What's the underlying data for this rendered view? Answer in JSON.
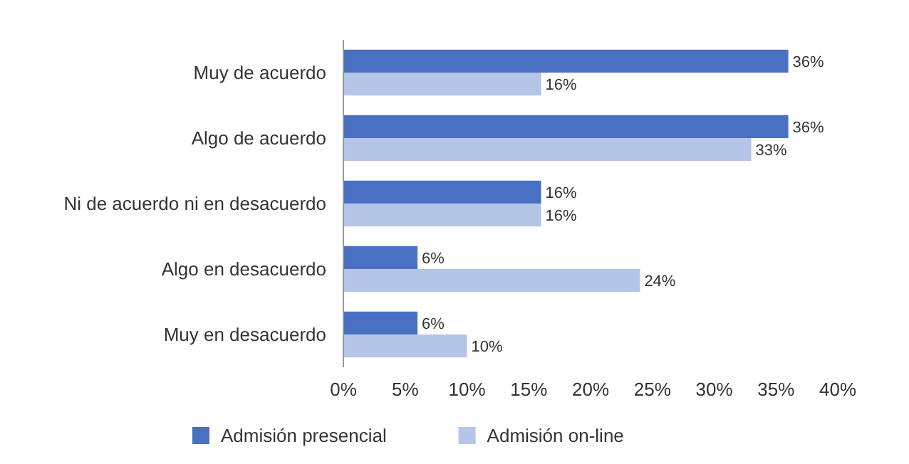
{
  "chart_data": {
    "type": "bar",
    "orientation": "horizontal",
    "categories": [
      "Muy de acuerdo",
      "Algo de acuerdo",
      "Ni de acuerdo ni en desacuerdo",
      "Algo en desacuerdo",
      "Muy en desacuerdo"
    ],
    "series": [
      {
        "name": "Admisión presencial",
        "color": "#4a70c4",
        "values": [
          36,
          36,
          16,
          6,
          6
        ],
        "value_labels": [
          "36%",
          "36%",
          "16%",
          "6%",
          "6%"
        ]
      },
      {
        "name": "Admisión on-line",
        "color": "#b4c5e8",
        "values": [
          16,
          33,
          16,
          24,
          10
        ],
        "value_labels": [
          "16%",
          "33%",
          "16%",
          "24%",
          "10%"
        ]
      }
    ],
    "xlim": [
      0,
      40
    ],
    "xticks": [
      {
        "value": 0,
        "label": "0%"
      },
      {
        "value": 5,
        "label": "5%"
      },
      {
        "value": 10,
        "label": "10%"
      },
      {
        "value": 15,
        "label": "15%"
      },
      {
        "value": 20,
        "label": "20%"
      },
      {
        "value": 25,
        "label": "25%"
      },
      {
        "value": 30,
        "label": "30%"
      },
      {
        "value": 35,
        "label": "35%"
      },
      {
        "value": 40,
        "label": "40%"
      }
    ],
    "legend": "bottom"
  }
}
